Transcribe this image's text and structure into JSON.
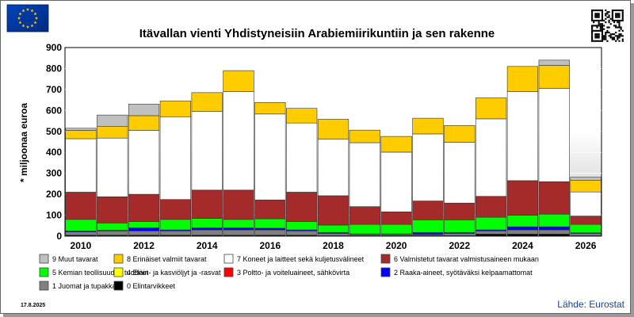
{
  "chart_data": {
    "type": "bar",
    "stacked": true,
    "title": "Itävallan vienti Yhdistyneisiin Arabiemiirikuntiin ja sen rakenne",
    "ylabel": "* miljoonaa euroa",
    "xlabel": "",
    "ylim": [
      0,
      900
    ],
    "yticks": [
      0,
      100,
      200,
      300,
      400,
      500,
      600,
      700,
      800,
      900
    ],
    "grid": true,
    "legend_position": "bottom",
    "categories": [
      "2010",
      "2011",
      "2012",
      "2013",
      "2014",
      "2015",
      "2016",
      "2017",
      "2018",
      "2019",
      "2020",
      "2021",
      "2022",
      "2023",
      "2024",
      "2025",
      "2026"
    ],
    "x_tick_labels": [
      "2010",
      "2012",
      "2014",
      "2016",
      "2018",
      "2020",
      "2022",
      "2024",
      "2026"
    ],
    "series": [
      {
        "name": "0 Elintarvikkeet",
        "color": "#000000",
        "values": [
          5,
          5,
          5,
          5,
          5,
          5,
          5,
          5,
          3,
          3,
          3,
          3,
          3,
          10,
          10,
          10,
          3
        ]
      },
      {
        "name": "1 Juomat ja tupakka",
        "color": "#808080",
        "values": [
          15,
          20,
          20,
          20,
          25,
          25,
          25,
          20,
          10,
          5,
          5,
          5,
          10,
          15,
          20,
          20,
          10
        ]
      },
      {
        "name": "2 Raaka-aineet, syötäväksi kelpaamattomat",
        "color": "#0000ff",
        "values": [
          5,
          3,
          15,
          5,
          10,
          10,
          8,
          5,
          5,
          3,
          3,
          10,
          5,
          5,
          15,
          15,
          3
        ]
      },
      {
        "name": "3 Poltto- ja voiteluaineet, sähkövirta",
        "color": "#ff0000",
        "values": [
          0,
          0,
          0,
          0,
          0,
          0,
          0,
          0,
          0,
          0,
          0,
          0,
          0,
          0,
          0,
          0,
          0
        ]
      },
      {
        "name": "4 Eläin- ja kasviöljyt ja -rasvat",
        "color": "#ffff00",
        "values": [
          0,
          0,
          0,
          0,
          0,
          0,
          0,
          0,
          0,
          0,
          0,
          0,
          0,
          0,
          0,
          0,
          0
        ]
      },
      {
        "name": "5 Kemian teollisuuden tuotteet",
        "color": "#00ff00",
        "values": [
          55,
          35,
          30,
          50,
          45,
          40,
          45,
          40,
          35,
          45,
          45,
          60,
          60,
          60,
          55,
          60,
          40
        ]
      },
      {
        "name": "6 Valmistetut tavarat valmistusaineen mukaan",
        "color": "#a52a2a",
        "values": [
          130,
          125,
          130,
          95,
          135,
          140,
          90,
          140,
          140,
          85,
          60,
          90,
          80,
          100,
          165,
          155,
          40
        ]
      },
      {
        "name": "7 Koneet ja laitteet sekä kuljetusvälineet",
        "color": "#ffffff",
        "values": [
          255,
          280,
          305,
          395,
          375,
          470,
          410,
          330,
          270,
          305,
          285,
          320,
          290,
          370,
          425,
          445,
          115
        ]
      },
      {
        "name": "8 Erinäiset valmiit tavarat",
        "color": "#ffcc00",
        "values": [
          40,
          55,
          70,
          75,
          90,
          100,
          55,
          70,
          95,
          60,
          75,
          75,
          80,
          100,
          120,
          110,
          55
        ]
      },
      {
        "name": "9 Muut tavarat",
        "color": "#c0c0c0",
        "values": [
          10,
          55,
          55,
          0,
          0,
          0,
          0,
          0,
          0,
          0,
          0,
          0,
          0,
          0,
          0,
          25,
          15
        ]
      }
    ]
  },
  "footer": {
    "date": "17.8.2025",
    "source": "Lähde: Eurostat"
  },
  "colors": {
    "plot_gradient_top": "#ffffff",
    "plot_gradient_bottom": "#b8b8b8",
    "eu_flag_blue": "#003399",
    "eu_flag_star": "#ffcc00"
  },
  "icons": {
    "flag": "eu-flag-icon",
    "qr": "qr-code-icon"
  }
}
